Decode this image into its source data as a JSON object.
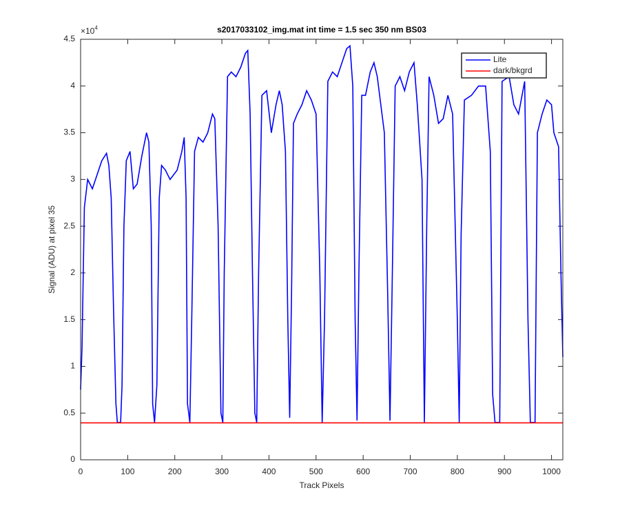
{
  "chart_data": {
    "type": "line",
    "title": "s2017033102_img.mat int time = 1.5 sec  350 nm BS03",
    "xlabel": "Track Pixels",
    "ylabel": "Signal (ADU) at pixel 35",
    "y_multiplier": {
      "base": "×10",
      "exponent": "4"
    },
    "xlim": [
      0,
      1024
    ],
    "xticks": [
      0,
      100,
      200,
      300,
      400,
      500,
      600,
      700,
      800,
      900,
      1000
    ],
    "ylim": [
      0,
      45000
    ],
    "yticks": [
      0,
      {
        "value": 5000,
        "label": "0.5"
      },
      {
        "value": 10000,
        "label": "1"
      },
      {
        "value": 15000,
        "label": "1.5"
      },
      {
        "value": 20000,
        "label": "2"
      },
      {
        "value": 25000,
        "label": "2.5"
      },
      {
        "value": 30000,
        "label": "3"
      },
      {
        "value": 35000,
        "label": "3.5"
      },
      {
        "value": 40000,
        "label": "4"
      },
      {
        "value": 45000,
        "label": "4.5"
      }
    ],
    "legend": "upper right",
    "series": [
      {
        "name": "Lite",
        "color": "#0000ff",
        "x": [
          0,
          3,
          8,
          15,
          25,
          35,
          45,
          55,
          60,
          65,
          70,
          75,
          78,
          85,
          88,
          92,
          97,
          105,
          112,
          120,
          130,
          140,
          145,
          150,
          153,
          157,
          162,
          167,
          172,
          180,
          190,
          205,
          215,
          220,
          224,
          227,
          232,
          236,
          242,
          250,
          260,
          270,
          280,
          285,
          292,
          298,
          302,
          305,
          312,
          320,
          330,
          340,
          350,
          355,
          360,
          365,
          370,
          374,
          378,
          385,
          395,
          405,
          415,
          422,
          428,
          435,
          440,
          444,
          448,
          452,
          460,
          470,
          480,
          490,
          500,
          508,
          513,
          518,
          525,
          535,
          545,
          555,
          565,
          572,
          578,
          583,
          587,
          591,
          597,
          605,
          615,
          623,
          630,
          645,
          652,
          657,
          662,
          668,
          678,
          688,
          698,
          708,
          715,
          725,
          730,
          735,
          740,
          750,
          760,
          770,
          780,
          790,
          800,
          804,
          808,
          815,
          830,
          845,
          860,
          870,
          875,
          880,
          890,
          895,
          910,
          920,
          930,
          943,
          950,
          955,
          965,
          970,
          980,
          990,
          1000,
          1005,
          1015,
          1020,
          1024
        ],
        "values": [
          7500,
          12000,
          27000,
          30000,
          29000,
          30500,
          32000,
          32800,
          31500,
          28000,
          16000,
          6000,
          4000,
          4000,
          8000,
          25000,
          32000,
          33000,
          29000,
          29500,
          32500,
          35000,
          34000,
          25000,
          6000,
          4000,
          8000,
          28000,
          31500,
          31000,
          30000,
          31000,
          33000,
          34500,
          28000,
          6000,
          4000,
          15000,
          33000,
          34500,
          34000,
          35000,
          37000,
          36500,
          25000,
          5000,
          4000,
          20000,
          41000,
          41500,
          41000,
          42000,
          43500,
          43800,
          37000,
          20000,
          5000,
          4000,
          20000,
          39000,
          39500,
          35000,
          38000,
          39500,
          38000,
          33000,
          15000,
          4500,
          18000,
          36000,
          37000,
          38000,
          39500,
          38500,
          37000,
          20000,
          4000,
          15000,
          40500,
          41500,
          41000,
          42500,
          44000,
          44300,
          40000,
          15000,
          4200,
          20000,
          39000,
          39000,
          41500,
          42500,
          41000,
          35000,
          18000,
          4200,
          20000,
          40000,
          41000,
          39500,
          41500,
          42500,
          38000,
          30000,
          4000,
          25000,
          41000,
          39000,
          36000,
          36500,
          39000,
          37000,
          15000,
          4000,
          24000,
          38500,
          39000,
          40000,
          40000,
          33000,
          7000,
          4000,
          4000,
          40500,
          41000,
          38000,
          37000,
          40500,
          15000,
          4000,
          4000,
          35000,
          37000,
          38500,
          38000,
          35000,
          33500,
          20000,
          11000
        ]
      },
      {
        "name": "dark/bkgrd",
        "color": "#ff0000",
        "x": [
          0,
          1024
        ],
        "values": [
          3950,
          3950
        ]
      }
    ]
  }
}
